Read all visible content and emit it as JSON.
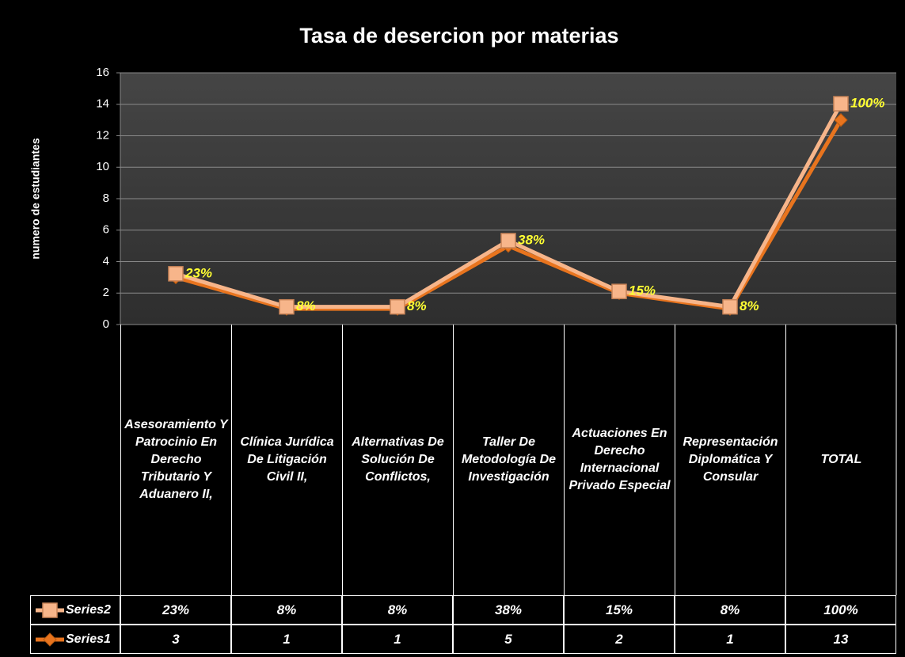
{
  "chart_data": {
    "type": "line",
    "title": "Tasa de desercion   por materias",
    "y_label": "numero de estudiantes",
    "categories": [
      "Asesoramiento Y Patrocinio En Derecho Tributario Y Aduanero II,",
      "Clínica Jurídica  De Litigación Civil II,",
      "Alternativas De Solución De Conflictos,",
      "Taller De Metodología De Investigación",
      "Actuaciones En Derecho Internacional Privado Especial",
      "Representación Diplomática Y Consular",
      "TOTAL"
    ],
    "series": [
      {
        "name": "Series2",
        "color": "#f7b58a",
        "marker": "square",
        "axis": "y2",
        "values": [
          23,
          8,
          8,
          38,
          15,
          8,
          100
        ],
        "value_labels": [
          "23%",
          "8%",
          "8%",
          "38%",
          "15%",
          "8%",
          "100%"
        ]
      },
      {
        "name": "Series1",
        "color": "#e8741e",
        "marker": "diamond",
        "values": [
          3,
          1,
          1,
          5,
          2,
          1,
          13
        ]
      }
    ],
    "ylim": [
      0,
      16
    ],
    "yticks": [
      0,
      2,
      4,
      6,
      8,
      10,
      12,
      14,
      16
    ],
    "y2lim": [
      0,
      114
    ],
    "grid": true
  }
}
